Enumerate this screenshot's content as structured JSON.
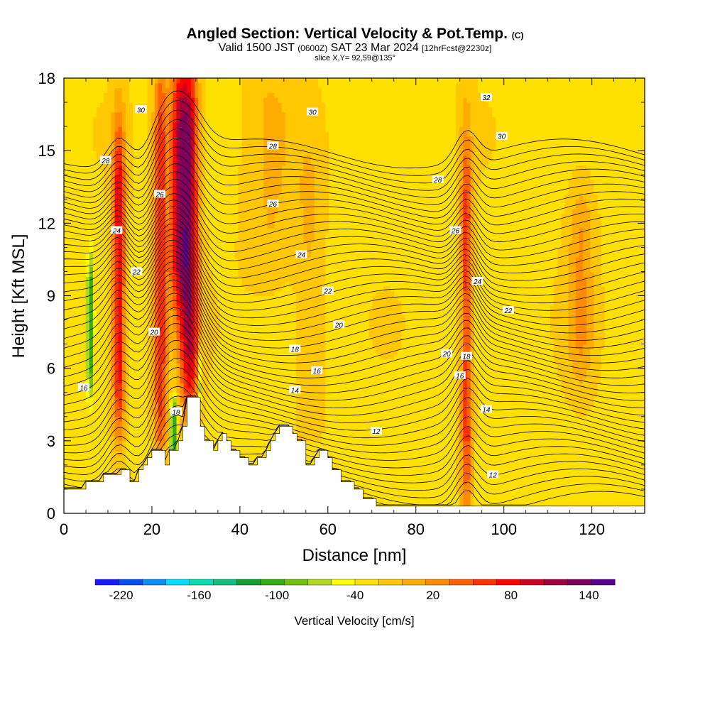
{
  "header": {
    "title_main": "Angled Section: Vertical Velocity & Pot.Temp.",
    "title_units": "(C)",
    "valid_a": "Valid 1500 JST",
    "valid_z": "(0600Z)",
    "valid_b": "SAT 23 Mar 2024",
    "valid_fcst": "[12hrFcst@2230z]",
    "slice": "slice X,Y= 92,59@135°"
  },
  "colors": {
    "colorbar": [
      "#1a1aff",
      "#0050f0",
      "#0a8ff5",
      "#00dfff",
      "#00e0b0",
      "#10c080",
      "#10a030",
      "#30b010",
      "#70c010",
      "#b0d820",
      "#ffff00",
      "#ffe000",
      "#ffc800",
      "#ffac00",
      "#ff8c00",
      "#ff6000",
      "#ff3000",
      "#ff0000",
      "#d00020",
      "#a00040",
      "#800060",
      "#5a0090"
    ]
  },
  "chart_data": {
    "type": "heatmap",
    "xlabel": "Distance [nm]",
    "ylabel": "Height [Kft MSL]",
    "xlim": [
      0,
      132
    ],
    "ylim": [
      0,
      18
    ],
    "xticks": [
      0,
      20,
      40,
      60,
      80,
      100,
      120
    ],
    "yticks": [
      0,
      3,
      6,
      9,
      12,
      15,
      18
    ],
    "colorbar": {
      "label": "Vertical Velocity [cm/s]",
      "ticks": [
        -220,
        -160,
        -100,
        -40,
        20,
        80,
        140
      ],
      "min": -230,
      "max": 150,
      "step": 20
    },
    "terrain": [
      [
        0,
        1
      ],
      [
        5,
        1
      ],
      [
        5,
        1.3
      ],
      [
        9,
        1.3
      ],
      [
        9,
        1.6
      ],
      [
        13,
        1.6
      ],
      [
        13,
        1.8
      ],
      [
        15,
        1.8
      ],
      [
        15,
        1.3
      ],
      [
        17,
        1.3
      ],
      [
        17,
        1.8
      ],
      [
        18,
        1.8
      ],
      [
        18,
        2.0
      ],
      [
        19,
        2.0
      ],
      [
        19,
        2.3
      ],
      [
        20,
        2.3
      ],
      [
        20,
        2.6
      ],
      [
        23,
        2.6
      ],
      [
        23,
        2.0
      ],
      [
        24,
        2.0
      ],
      [
        24,
        2.6
      ],
      [
        26,
        2.6
      ],
      [
        26,
        3.0
      ],
      [
        27,
        3.0
      ],
      [
        27,
        3.6
      ],
      [
        28,
        3.6
      ],
      [
        28,
        4.8
      ],
      [
        31,
        4.8
      ],
      [
        31,
        3.6
      ],
      [
        32,
        3.6
      ],
      [
        32,
        3.0
      ],
      [
        34,
        3.0
      ],
      [
        34,
        2.6
      ],
      [
        35,
        2.6
      ],
      [
        35,
        3.0
      ],
      [
        36,
        3.0
      ],
      [
        36,
        3.3
      ],
      [
        37,
        3.3
      ],
      [
        37,
        3.0
      ],
      [
        38,
        3.0
      ],
      [
        38,
        2.6
      ],
      [
        40,
        2.6
      ],
      [
        40,
        2.3
      ],
      [
        42,
        2.3
      ],
      [
        42,
        2.0
      ],
      [
        44,
        2.0
      ],
      [
        44,
        2.3
      ],
      [
        46,
        2.3
      ],
      [
        46,
        2.6
      ],
      [
        47,
        2.6
      ],
      [
        47,
        3.0
      ],
      [
        48,
        3.0
      ],
      [
        48,
        3.3
      ],
      [
        49,
        3.3
      ],
      [
        49,
        3.6
      ],
      [
        52,
        3.6
      ],
      [
        52,
        3.3
      ],
      [
        53,
        3.3
      ],
      [
        53,
        3.0
      ],
      [
        55,
        3.0
      ],
      [
        55,
        2.0
      ],
      [
        57,
        2.0
      ],
      [
        57,
        2.3
      ],
      [
        58,
        2.3
      ],
      [
        58,
        2.6
      ],
      [
        60,
        2.6
      ],
      [
        60,
        2.3
      ],
      [
        61,
        2.3
      ],
      [
        61,
        1.8
      ],
      [
        63,
        1.8
      ],
      [
        63,
        1.3
      ],
      [
        66,
        1.3
      ],
      [
        66,
        1.0
      ],
      [
        68,
        1.0
      ],
      [
        68,
        0.6
      ],
      [
        71,
        0.6
      ],
      [
        71,
        0.3
      ],
      [
        132,
        0.3
      ]
    ],
    "potential_temperature_labels": [
      {
        "value": "30",
        "x": 17.5,
        "y": 16.7
      },
      {
        "value": "30",
        "x": 56.5,
        "y": 16.6
      },
      {
        "value": "32",
        "x": 96,
        "y": 17.2
      },
      {
        "value": "30",
        "x": 99.5,
        "y": 15.6
      },
      {
        "value": "28",
        "x": 9.5,
        "y": 14.6
      },
      {
        "value": "28",
        "x": 47.5,
        "y": 15.2
      },
      {
        "value": "28",
        "x": 85,
        "y": 13.8
      },
      {
        "value": "26",
        "x": 21.8,
        "y": 13.2
      },
      {
        "value": "26",
        "x": 47.5,
        "y": 12.8
      },
      {
        "value": "26",
        "x": 89,
        "y": 11.7
      },
      {
        "value": "24",
        "x": 12,
        "y": 11.7
      },
      {
        "value": "24",
        "x": 54,
        "y": 10.7
      },
      {
        "value": "24",
        "x": 94,
        "y": 9.6
      },
      {
        "value": "22",
        "x": 16.5,
        "y": 10.0
      },
      {
        "value": "22",
        "x": 60,
        "y": 9.2
      },
      {
        "value": "22",
        "x": 101,
        "y": 8.4
      },
      {
        "value": "20",
        "x": 20.5,
        "y": 7.5
      },
      {
        "value": "20",
        "x": 62.5,
        "y": 7.8
      },
      {
        "value": "20",
        "x": 87,
        "y": 6.6
      },
      {
        "value": "18",
        "x": 52.5,
        "y": 6.8
      },
      {
        "value": "18",
        "x": 91.5,
        "y": 6.5
      },
      {
        "value": "18",
        "x": 25.5,
        "y": 4.2
      },
      {
        "value": "16",
        "x": 4.5,
        "y": 5.2
      },
      {
        "value": "16",
        "x": 57.5,
        "y": 5.9
      },
      {
        "value": "16",
        "x": 90,
        "y": 5.7
      },
      {
        "value": "14",
        "x": 52.5,
        "y": 5.1
      },
      {
        "value": "14",
        "x": 96,
        "y": 4.3
      },
      {
        "value": "12",
        "x": 71,
        "y": 3.4
      },
      {
        "value": "12",
        "x": 97.5,
        "y": 1.6
      }
    ],
    "updraft_features": [
      {
        "x": 12.5,
        "ytop": 15.5,
        "ybot": 4.0,
        "w": 1.5,
        "peak": 120
      },
      {
        "x": 22.0,
        "ytop": 18.0,
        "ybot": 2.6,
        "w": 1.6,
        "peak": 100
      },
      {
        "x": 28.5,
        "ytop": 18.0,
        "ybot": 5.0,
        "w": 2.2,
        "peak": 150
      },
      {
        "x": 26.0,
        "ytop": 18.0,
        "ybot": 9.0,
        "w": 2.0,
        "peak": 110
      },
      {
        "x": 91.5,
        "ytop": 15.0,
        "ybot": 0.4,
        "w": 1.4,
        "peak": 95
      },
      {
        "x": 117.5,
        "ytop": 13.0,
        "ybot": 6.0,
        "w": 3.0,
        "peak": 45
      },
      {
        "x": 47,
        "ytop": 18.0,
        "ybot": 10.0,
        "w": 6.0,
        "peak": 25
      },
      {
        "x": 56,
        "ytop": 15.0,
        "ybot": 4.0,
        "w": 3.0,
        "peak": 25
      }
    ],
    "downdraft_features": [
      {
        "x": 6.0,
        "ytop": 10.5,
        "ybot": 5.0,
        "w": 0.7,
        "peak": -70
      },
      {
        "x": 25.0,
        "ytop": 4.5,
        "ybot": 2.6,
        "w": 0.8,
        "peak": -90
      },
      {
        "x": 31.0,
        "ytop": 6.5,
        "ybot": 4.8,
        "w": 0.5,
        "peak": -60
      }
    ]
  }
}
